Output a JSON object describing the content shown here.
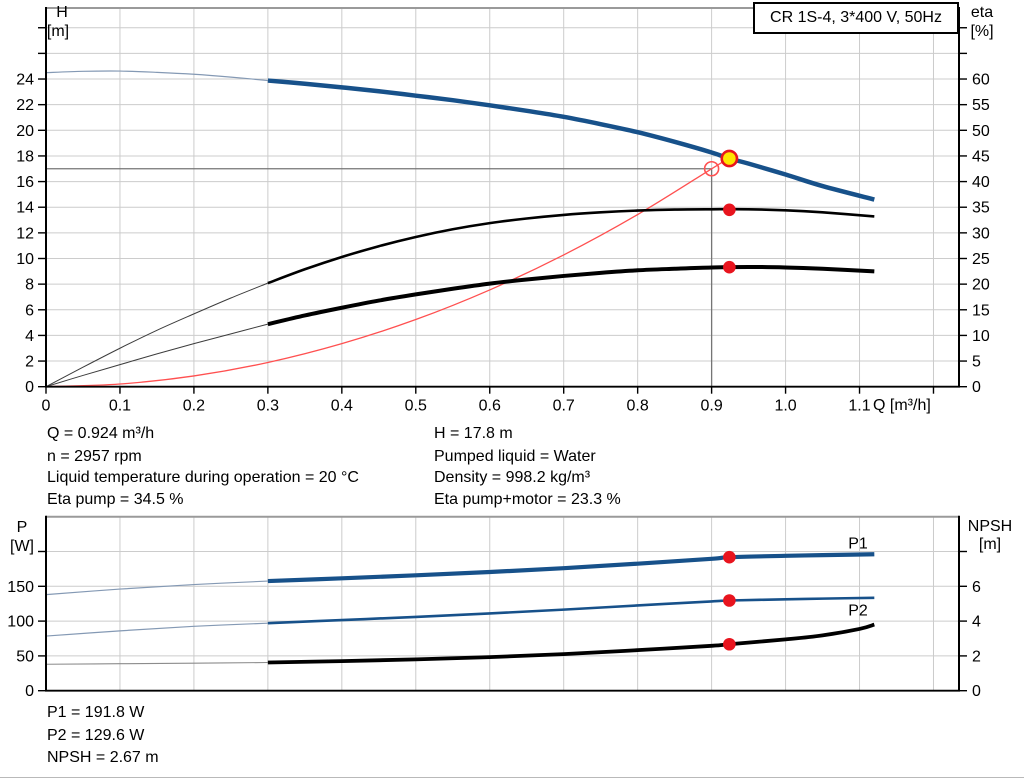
{
  "title_box": {
    "label": "CR 1S-4, 3*400 V, 50Hz"
  },
  "axes_labels": {
    "h_label": "H",
    "h_unit": "[m]",
    "eta_label": "eta",
    "eta_unit": "[%]",
    "p_label": "P",
    "p_unit": "[W]",
    "npsh_label": "NPSH",
    "npsh_unit": "[m]",
    "x_unit": "Q [m³/h]"
  },
  "operating_point": {
    "q": "Q = 0.924 m³/h",
    "n": "n = 2957 rpm",
    "liquid_temp": "Liquid temperature during operation = 20 °C",
    "eta_pump": "Eta pump = 34.5 %",
    "h": "H = 17.8 m",
    "pumped_liquid": "Pumped liquid = Water",
    "density": "Density = 998.2 kg/m³",
    "eta_pump_motor": "Eta pump+motor = 23.3 %",
    "p1": "P1 = 191.8 W",
    "p2": "P2 = 129.6 W",
    "npsh": "NPSH = 2.67 m"
  },
  "colors": {
    "curve_blue": "#17518a",
    "thin_blue": "#8499b4",
    "curve_black": "#000000",
    "thin_black": "#3c3c3c",
    "thin_gray": "#8c8c8c",
    "system_red": "#ff5050",
    "marker_red": "#e8141e",
    "marker_yellow": "#ffe400",
    "duty_gray": "#757575",
    "grid_gray": "#cccccc",
    "frame_gray": "#9a9a9a",
    "label_blue": "#17518a"
  },
  "chart_data": [
    {
      "id": "qh",
      "name": "qh-eta-chart",
      "type": "line",
      "title": "CR 1S-4, 3*400 V, 50Hz",
      "xlabel": "Q [m³/h]",
      "xlim": [
        0,
        1.2345
      ],
      "left_axis": {
        "label": "H [m]",
        "lim": [
          0,
          29.54
        ],
        "ticks": [
          {
            "v": 0,
            "label": "0"
          },
          {
            "v": 2,
            "label": "2"
          },
          {
            "v": 4,
            "label": "4"
          },
          {
            "v": 6,
            "label": "6"
          },
          {
            "v": 8,
            "label": "8"
          },
          {
            "v": 10,
            "label": "10"
          },
          {
            "v": 12,
            "label": "12"
          },
          {
            "v": 14,
            "label": "14"
          },
          {
            "v": 16,
            "label": "16"
          },
          {
            "v": 18,
            "label": "18"
          },
          {
            "v": 20,
            "label": "20"
          },
          {
            "v": 22,
            "label": "22"
          },
          {
            "v": 24,
            "label": "24"
          },
          {
            "v": 26
          },
          {
            "v": 28
          }
        ]
      },
      "right_axis": {
        "label": "eta [%]",
        "lim": [
          0,
          73.85
        ],
        "ticks": [
          {
            "v": 0,
            "label": "0"
          },
          {
            "v": 5,
            "label": "5"
          },
          {
            "v": 10,
            "label": "10"
          },
          {
            "v": 15,
            "label": "15"
          },
          {
            "v": 20,
            "label": "20"
          },
          {
            "v": 25,
            "label": "25"
          },
          {
            "v": 30,
            "label": "30"
          },
          {
            "v": 35,
            "label": "35"
          },
          {
            "v": 40,
            "label": "40"
          },
          {
            "v": 45,
            "label": "45"
          },
          {
            "v": 50,
            "label": "50"
          },
          {
            "v": 55,
            "label": "55"
          },
          {
            "v": 60,
            "label": "60"
          },
          {
            "v": 65
          },
          {
            "v": 70
          }
        ]
      },
      "x_axis": {
        "ticks": [
          {
            "v": 0,
            "label": "0"
          },
          {
            "v": 0.1,
            "label": "0.1"
          },
          {
            "v": 0.2,
            "label": "0.2"
          },
          {
            "v": 0.3,
            "label": "0.3"
          },
          {
            "v": 0.4,
            "label": "0.4"
          },
          {
            "v": 0.5,
            "label": "0.5"
          },
          {
            "v": 0.6,
            "label": "0.6"
          },
          {
            "v": 0.7,
            "label": "0.7"
          },
          {
            "v": 0.8,
            "label": "0.8"
          },
          {
            "v": 0.9,
            "label": "0.9"
          },
          {
            "v": 1.0,
            "label": "1.0"
          },
          {
            "v": 1.1,
            "label": "1.1"
          },
          {
            "v": 1.2
          }
        ]
      },
      "grid": {
        "x": [
          0.1,
          0.2,
          0.3,
          0.4,
          0.5,
          0.6,
          0.7,
          0.8,
          0.9,
          1.0,
          1.1,
          1.2
        ],
        "left": [
          2,
          4,
          6,
          8,
          10,
          12,
          14,
          16,
          18,
          20,
          22,
          24,
          26,
          28
        ]
      },
      "duty_lines": [
        {
          "type": "h",
          "v": 17,
          "q1": 0,
          "q2": 0.9
        },
        {
          "type": "v",
          "q": 0.9,
          "v1": 17,
          "v2": 0
        }
      ],
      "series": [
        {
          "name": "system-curve",
          "axis": "left",
          "color_key": "system_red",
          "width": 1.3,
          "points": [
            [
              0,
              0
            ],
            [
              0.1,
              0.21
            ],
            [
              0.2,
              0.84
            ],
            [
              0.3,
              1.89
            ],
            [
              0.4,
              3.36
            ],
            [
              0.5,
              5.24
            ],
            [
              0.6,
              7.55
            ],
            [
              0.7,
              10.28
            ],
            [
              0.8,
              13.43
            ],
            [
              0.9,
              17.0
            ],
            [
              0.924,
              17.85
            ]
          ]
        },
        {
          "name": "eta-pump-curve-extrapolated",
          "axis": "right",
          "color_key": "thin_black",
          "width": 1,
          "points": [
            [
              0,
              0
            ],
            [
              0.05,
              3.8
            ],
            [
              0.1,
              7.5
            ],
            [
              0.15,
              11.0
            ],
            [
              0.2,
              14.2
            ],
            [
              0.25,
              17.3
            ],
            [
              0.3,
              20.2
            ]
          ]
        },
        {
          "name": "eta-pump-motor-curve-extrapolated",
          "axis": "right",
          "color_key": "thin_black",
          "width": 1,
          "points": [
            [
              0,
              0
            ],
            [
              0.05,
              2.2
            ],
            [
              0.1,
              4.3
            ],
            [
              0.15,
              6.4
            ],
            [
              0.2,
              8.4
            ],
            [
              0.25,
              10.3
            ],
            [
              0.3,
              12.2
            ]
          ]
        },
        {
          "name": "eta-pump-curve",
          "axis": "right",
          "color_key": "curve_black",
          "width": 2.6,
          "points": [
            [
              0.3,
              20.2
            ],
            [
              0.35,
              22.9
            ],
            [
              0.4,
              25.3
            ],
            [
              0.45,
              27.4
            ],
            [
              0.5,
              29.2
            ],
            [
              0.55,
              30.7
            ],
            [
              0.6,
              31.9
            ],
            [
              0.65,
              32.8
            ],
            [
              0.7,
              33.5
            ],
            [
              0.75,
              34.0
            ],
            [
              0.8,
              34.35
            ],
            [
              0.85,
              34.55
            ],
            [
              0.9,
              34.6
            ],
            [
              0.95,
              34.6
            ],
            [
              1.0,
              34.4
            ],
            [
              1.05,
              34.0
            ],
            [
              1.12,
              33.2
            ]
          ]
        },
        {
          "name": "eta-pump-motor-curve",
          "axis": "right",
          "color_key": "curve_black",
          "width": 4,
          "points": [
            [
              0.3,
              12.2
            ],
            [
              0.35,
              13.9
            ],
            [
              0.4,
              15.4
            ],
            [
              0.45,
              16.8
            ],
            [
              0.5,
              18.0
            ],
            [
              0.55,
              19.1
            ],
            [
              0.6,
              20.1
            ],
            [
              0.65,
              20.9
            ],
            [
              0.7,
              21.6
            ],
            [
              0.75,
              22.2
            ],
            [
              0.8,
              22.7
            ],
            [
              0.85,
              23.0
            ],
            [
              0.9,
              23.25
            ],
            [
              0.95,
              23.35
            ],
            [
              1.0,
              23.25
            ],
            [
              1.05,
              23.0
            ],
            [
              1.12,
              22.5
            ]
          ]
        },
        {
          "name": "qh-curve-extrapolated",
          "axis": "left",
          "color_key": "thin_blue",
          "width": 1.2,
          "points": [
            [
              0,
              24.5
            ],
            [
              0.05,
              24.6
            ],
            [
              0.1,
              24.62
            ],
            [
              0.15,
              24.52
            ],
            [
              0.2,
              24.37
            ],
            [
              0.25,
              24.15
            ],
            [
              0.3,
              23.88
            ]
          ]
        },
        {
          "name": "qh-curve",
          "axis": "left",
          "color_key": "curve_blue",
          "width": 4.5,
          "points": [
            [
              0.3,
              23.88
            ],
            [
              0.35,
              23.63
            ],
            [
              0.4,
              23.35
            ],
            [
              0.45,
              23.05
            ],
            [
              0.5,
              22.7
            ],
            [
              0.55,
              22.35
            ],
            [
              0.6,
              21.95
            ],
            [
              0.65,
              21.52
            ],
            [
              0.7,
              21.05
            ],
            [
              0.75,
              20.48
            ],
            [
              0.8,
              19.85
            ],
            [
              0.85,
              19.1
            ],
            [
              0.9,
              18.27
            ],
            [
              0.924,
              17.8
            ],
            [
              0.95,
              17.4
            ],
            [
              1.0,
              16.55
            ],
            [
              1.05,
              15.65
            ],
            [
              1.12,
              14.6
            ]
          ]
        }
      ],
      "markers": [
        {
          "type": "ring",
          "q": 0.9,
          "v": 17,
          "axis": "left",
          "meaning": "specified duty point"
        },
        {
          "type": "target",
          "q": 0.924,
          "v": 17.8,
          "axis": "left",
          "meaning": "actual operating point"
        },
        {
          "type": "dot",
          "q": 0.924,
          "v": 34.5,
          "axis": "right",
          "meaning": "eta pump at duty"
        },
        {
          "type": "dot",
          "q": 0.924,
          "v": 23.3,
          "axis": "right",
          "meaning": "eta pump+motor at duty"
        }
      ]
    },
    {
      "id": "power",
      "name": "power-npsh-chart",
      "type": "line",
      "title": "",
      "xlabel": "Q [m³/h]",
      "xlim": [
        0,
        1.2345
      ],
      "left_axis": {
        "label": "P [W]",
        "lim": [
          0,
          250
        ],
        "ticks": [
          {
            "v": 0,
            "label": "0"
          },
          {
            "v": 50,
            "label": "50"
          },
          {
            "v": 100,
            "label": "100"
          },
          {
            "v": 150,
            "label": "150"
          },
          {
            "v": 200
          }
        ]
      },
      "right_axis": {
        "label": "NPSH [m]",
        "lim": [
          0,
          10
        ],
        "ticks": [
          {
            "v": 0,
            "label": "0"
          },
          {
            "v": 2,
            "label": "2"
          },
          {
            "v": 4,
            "label": "4"
          },
          {
            "v": 6,
            "label": "6"
          },
          {
            "v": 8
          }
        ]
      },
      "grid": {
        "x": [
          0.1,
          0.2,
          0.3,
          0.4,
          0.5,
          0.6,
          0.7,
          0.8,
          0.9,
          1.0,
          1.1,
          1.2
        ],
        "left": [
          50,
          100,
          150,
          200
        ]
      },
      "duty_lines": [],
      "series": [
        {
          "name": "npsh-curve-extrapolated",
          "axis": "right",
          "color_key": "thin_gray",
          "width": 1.1,
          "points": [
            [
              0,
              1.52
            ],
            [
              0.1,
              1.55
            ],
            [
              0.2,
              1.58
            ],
            [
              0.3,
              1.62
            ]
          ]
        },
        {
          "name": "npsh-curve",
          "axis": "right",
          "color_key": "curve_black",
          "width": 3.8,
          "points": [
            [
              0.3,
              1.62
            ],
            [
              0.4,
              1.7
            ],
            [
              0.5,
              1.8
            ],
            [
              0.6,
              1.93
            ],
            [
              0.7,
              2.1
            ],
            [
              0.8,
              2.33
            ],
            [
              0.9,
              2.58
            ],
            [
              0.924,
              2.67
            ],
            [
              1.0,
              2.95
            ],
            [
              1.05,
              3.18
            ],
            [
              1.1,
              3.55
            ],
            [
              1.12,
              3.8
            ]
          ]
        },
        {
          "name": "p2-curve-extrapolated",
          "axis": "left",
          "color_key": "thin_blue",
          "width": 1.2,
          "points": [
            [
              0,
              78.5
            ],
            [
              0.1,
              86
            ],
            [
              0.2,
              92.5
            ],
            [
              0.3,
              97
            ]
          ]
        },
        {
          "name": "p2-curve",
          "axis": "left",
          "color_key": "curve_blue",
          "width": 2.6,
          "points": [
            [
              0.3,
              97
            ],
            [
              0.4,
              101.5
            ],
            [
              0.5,
              106
            ],
            [
              0.6,
              111
            ],
            [
              0.7,
              116.5
            ],
            [
              0.8,
              122.5
            ],
            [
              0.9,
              128.3
            ],
            [
              0.924,
              129.6
            ],
            [
              1.0,
              131.3
            ],
            [
              1.05,
              132.3
            ],
            [
              1.12,
              133.5
            ]
          ]
        },
        {
          "name": "p1-curve-extrapolated",
          "axis": "left",
          "color_key": "thin_blue",
          "width": 1.2,
          "points": [
            [
              0,
              138
            ],
            [
              0.1,
              146
            ],
            [
              0.2,
              152.5
            ],
            [
              0.3,
              157.5
            ]
          ]
        },
        {
          "name": "p1-curve",
          "axis": "left",
          "color_key": "curve_blue",
          "width": 4.2,
          "points": [
            [
              0.3,
              157.5
            ],
            [
              0.4,
              161.5
            ],
            [
              0.5,
              165.8
            ],
            [
              0.6,
              170.5
            ],
            [
              0.7,
              176
            ],
            [
              0.8,
              182.5
            ],
            [
              0.9,
              189.5
            ],
            [
              0.924,
              191.8
            ],
            [
              1.0,
              193.8
            ],
            [
              1.05,
              194.8
            ],
            [
              1.12,
              196
            ]
          ]
        }
      ],
      "markers": [
        {
          "type": "dot",
          "q": 0.924,
          "v": 191.8,
          "axis": "left",
          "meaning": "P1 at duty"
        },
        {
          "type": "dot",
          "q": 0.924,
          "v": 129.6,
          "axis": "left",
          "meaning": "P2 at duty"
        },
        {
          "type": "dot",
          "q": 0.924,
          "v": 2.67,
          "axis": "right",
          "meaning": "NPSH at duty"
        }
      ],
      "labels": [
        {
          "text": "P1",
          "q": 1.098,
          "v": 212,
          "axis": "left",
          "color_key": "label_blue"
        },
        {
          "text": "P2",
          "q": 1.098,
          "v": 116,
          "axis": "left",
          "color_key": "label_blue"
        }
      ]
    }
  ]
}
